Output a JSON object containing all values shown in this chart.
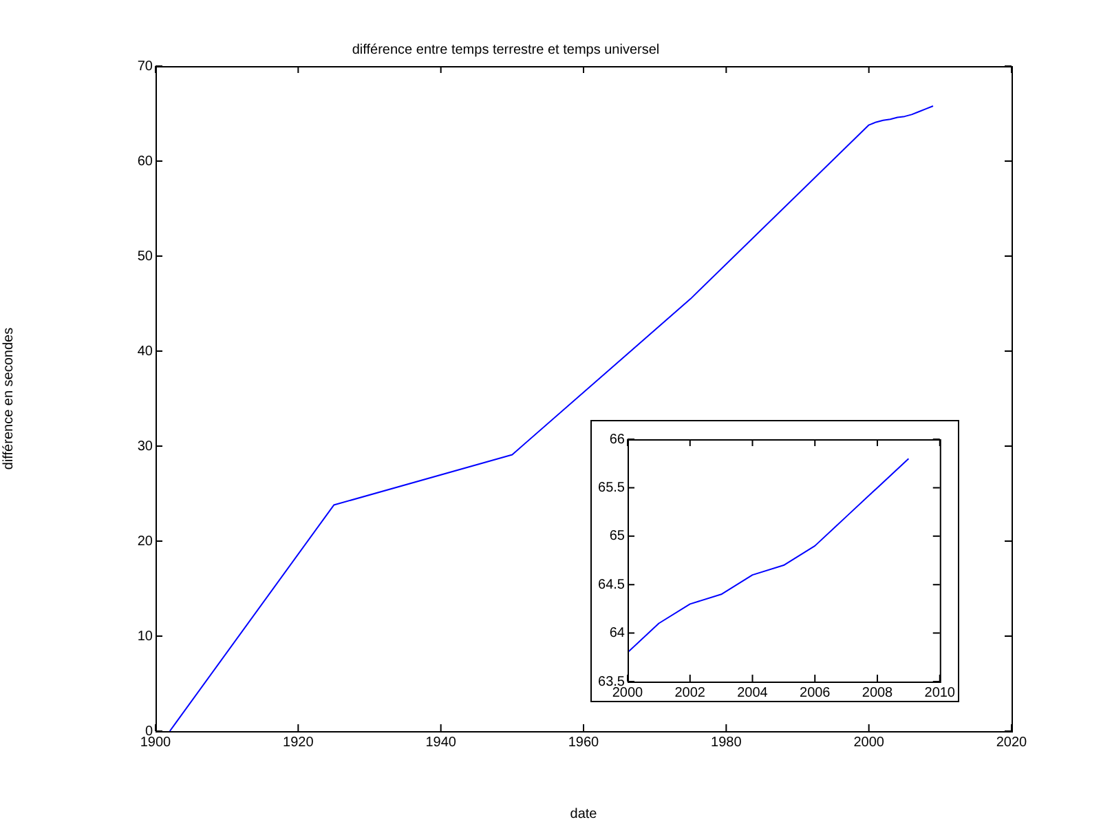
{
  "chart_data": [
    {
      "type": "line",
      "title": "différence entre temps terrestre et temps universel",
      "xlabel": "date",
      "ylabel": "différence en secondes",
      "series": [
        {
          "color": "#0000ff",
          "x": [
            1902,
            1925,
            1950,
            1975,
            2000,
            2001,
            2002,
            2003,
            2004,
            2005,
            2006,
            2007,
            2008,
            2009
          ],
          "values": [
            0,
            23.8,
            29.1,
            45.5,
            63.8,
            64.1,
            64.3,
            64.4,
            64.6,
            64.7,
            64.9,
            65.2,
            65.5,
            65.8
          ]
        }
      ],
      "xlim": [
        1900,
        2020
      ],
      "xticks": [
        1900,
        1920,
        1940,
        1960,
        1980,
        2000,
        2020
      ],
      "ylim": [
        0,
        70
      ],
      "yticks": [
        0,
        10,
        20,
        30,
        40,
        50,
        60,
        70
      ],
      "grid": false
    },
    {
      "type": "line",
      "series": [
        {
          "color": "#0000ff",
          "x": [
            2000,
            2001,
            2002,
            2003,
            2004,
            2005,
            2006,
            2007,
            2008,
            2009
          ],
          "values": [
            63.8,
            64.1,
            64.3,
            64.4,
            64.6,
            64.7,
            64.9,
            65.2,
            65.5,
            65.8
          ]
        }
      ],
      "xlim": [
        2000,
        2010
      ],
      "xticks": [
        2000,
        2002,
        2004,
        2006,
        2008,
        2010
      ],
      "ylim": [
        63.5,
        66
      ],
      "yticks": [
        63.5,
        64,
        64.5,
        65,
        65.5,
        66
      ],
      "grid": false
    }
  ]
}
